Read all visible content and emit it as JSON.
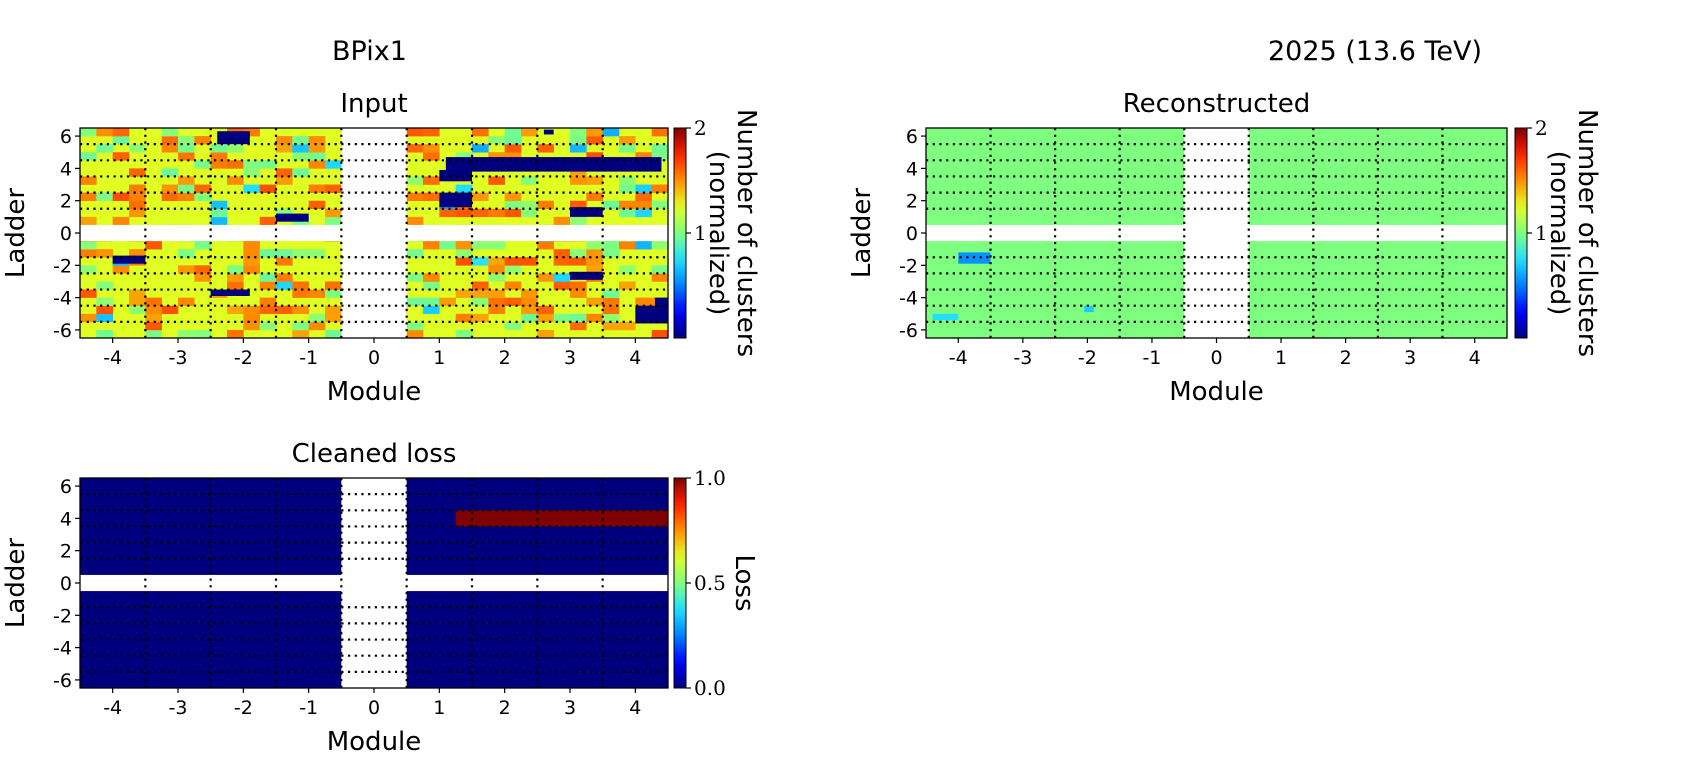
{
  "figure": {
    "left_title": "BPix1",
    "right_title": "2025 (13.6 TeV)"
  },
  "colors": {
    "colormap": [
      "#00007f",
      "#0000ff",
      "#0080ff",
      "#22e0ff",
      "#7fff7f",
      "#e0ff22",
      "#ff9000",
      "#ff2000",
      "#7f0000"
    ],
    "grid_line": "#000000",
    "empty_cell": "#ffffff"
  },
  "chart_data": [
    {
      "id": "input",
      "type": "heatmap",
      "title": "Input",
      "xlabel": "Module",
      "ylabel": "Ladder",
      "xlim": [
        -4.5,
        4.5
      ],
      "ylim": [
        -6.5,
        6.5
      ],
      "x_ticks": [
        -4,
        -3,
        -2,
        -1,
        0,
        1,
        2,
        3,
        4
      ],
      "y_ticks": [
        -6,
        -4,
        -2,
        0,
        2,
        4,
        6
      ],
      "grid": "dotted lines at module and ladder boundaries",
      "empty_regions": [
        "module 0",
        "ladder 0"
      ],
      "colorbar": {
        "label": "Number of clusters (normalized)",
        "range": [
          0,
          2
        ],
        "ticks": [
          1,
          2
        ]
      },
      "fill_value": 1.25,
      "anomalies": [
        {
          "x": [
            -2.4,
            -1.9
          ],
          "y": [
            5.5,
            6.3
          ],
          "value": 0
        },
        {
          "x": [
            1.0,
            1.5
          ],
          "y": [
            3.2,
            3.9
          ],
          "value": 0
        },
        {
          "x": [
            1.1,
            4.4
          ],
          "y": [
            3.8,
            4.7
          ],
          "value": 0
        },
        {
          "x": [
            1.0,
            1.5
          ],
          "y": [
            1.6,
            2.5
          ],
          "value": 0
        },
        {
          "x": [
            3.0,
            3.5
          ],
          "y": [
            1.0,
            1.6
          ],
          "value": 0
        },
        {
          "x": [
            -1.5,
            -1.0
          ],
          "y": [
            0.7,
            1.2
          ],
          "value": 0
        },
        {
          "x": [
            -4.0,
            -3.5
          ],
          "y": [
            -1.9,
            -1.4
          ],
          "value": 0
        },
        {
          "x": [
            -2.5,
            -1.9
          ],
          "y": [
            -3.9,
            -3.5
          ],
          "value": 0
        },
        {
          "x": [
            3.0,
            3.5
          ],
          "y": [
            -2.9,
            -2.4
          ],
          "value": 0
        },
        {
          "x": [
            4.0,
            4.5
          ],
          "y": [
            -5.6,
            -4.5
          ],
          "value": 0
        },
        {
          "x": [
            4.3,
            4.5
          ],
          "y": [
            -4.6,
            -4.0
          ],
          "value": 0
        },
        {
          "x": [
            2.6,
            2.75
          ],
          "y": [
            6.1,
            6.4
          ],
          "value": 0
        }
      ]
    },
    {
      "id": "reconstructed",
      "type": "heatmap",
      "title": "Reconstructed",
      "xlabel": "Module",
      "ylabel": "Ladder",
      "xlim": [
        -4.5,
        4.5
      ],
      "ylim": [
        -6.5,
        6.5
      ],
      "x_ticks": [
        -4,
        -3,
        -2,
        -1,
        0,
        1,
        2,
        3,
        4
      ],
      "y_ticks": [
        -6,
        -4,
        -2,
        0,
        2,
        4,
        6
      ],
      "grid": "dotted lines at module and ladder boundaries",
      "empty_regions": [
        "module 0",
        "ladder 0"
      ],
      "colorbar": {
        "label": "Number of clusters (normalized)",
        "range": [
          0,
          2
        ],
        "ticks": [
          1,
          2
        ]
      },
      "fill_value": 1.0,
      "anomalies": [
        {
          "x": [
            -4.0,
            -3.5
          ],
          "y": [
            -1.9,
            -1.2
          ],
          "value": 0.55
        },
        {
          "x": [
            -4.4,
            -4.0
          ],
          "y": [
            -5.4,
            -5.0
          ],
          "value": 0.75
        },
        {
          "x": [
            -2.05,
            -1.9
          ],
          "y": [
            -4.9,
            -4.5
          ],
          "value": 0.7
        }
      ]
    },
    {
      "id": "cleaned-loss",
      "type": "heatmap",
      "title": "Cleaned loss",
      "xlabel": "Module",
      "ylabel": "Ladder",
      "xlim": [
        -4.5,
        4.5
      ],
      "ylim": [
        -6.5,
        6.5
      ],
      "x_ticks": [
        -4,
        -3,
        -2,
        -1,
        0,
        1,
        2,
        3,
        4
      ],
      "y_ticks": [
        -6,
        -4,
        -2,
        0,
        2,
        4,
        6
      ],
      "grid": "dotted lines at module and ladder boundaries",
      "empty_regions": [
        "module 0",
        "ladder 0"
      ],
      "colorbar": {
        "label": "Loss",
        "range": [
          0.0,
          1.0
        ],
        "ticks": [
          "0.0",
          "0.5",
          "1.0"
        ]
      },
      "fill_value": 0.0,
      "anomalies": [
        {
          "x": [
            1.25,
            4.5
          ],
          "y": [
            3.5,
            4.5
          ],
          "value": 1.0
        }
      ]
    }
  ]
}
